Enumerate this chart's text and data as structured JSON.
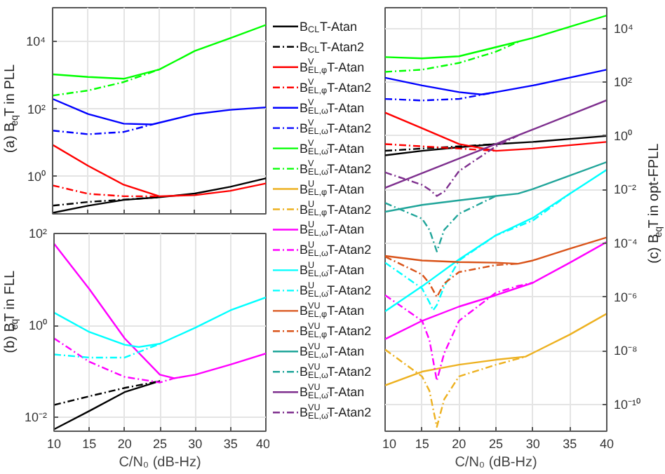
{
  "chart_data": [
    {
      "type": "line",
      "ylabel": "(a) B$_{eq}$T in PLL",
      "xlim": [
        10,
        40
      ],
      "xticks": [
        10,
        15,
        20,
        25,
        30,
        35,
        40
      ],
      "ylim": [
        0.079,
        100000
      ],
      "yticks": [
        {
          "value": 1,
          "label": "10⁰"
        },
        {
          "value": 100,
          "label": "10²"
        },
        {
          "value": 10000,
          "label": "10⁴"
        }
      ],
      "log": true,
      "grid": true,
      "tick_labels": "y",
      "legend": "right",
      "series": [
        {
          "name": "B$_{CL}$T-Atan",
          "color": "#000000",
          "line_style": "solid",
          "x": [
            10,
            15,
            20,
            25,
            30,
            35,
            40
          ],
          "values": [
            0.085,
            0.138,
            0.204,
            0.245,
            0.316,
            0.5,
            0.89
          ]
        },
        {
          "name": "B$_{CL}$T-Atan2",
          "color": "#000000",
          "line_style": "dashed",
          "x": [
            10,
            15,
            20,
            25
          ],
          "values": [
            0.138,
            0.178,
            0.209,
            0.245
          ]
        },
        {
          "name": "B$^{V}$$_{EL,φ}$T-Atan",
          "color": "#ff0000",
          "line_style": "solid",
          "x": [
            10,
            15,
            20,
            25,
            30,
            35,
            40
          ],
          "values": [
            8.7,
            2.09,
            0.575,
            0.263,
            0.282,
            0.38,
            0.63
          ]
        },
        {
          "name": "B$^{V}$$_{EL,φ}$T-Atan2",
          "color": "#ff0000",
          "line_style": "dashed",
          "x": [
            10,
            15,
            20,
            25
          ],
          "values": [
            0.55,
            0.31,
            0.263,
            0.263
          ]
        },
        {
          "name": "B$^{V}$$_{EL,ω}$T-Atan",
          "color": "#0000ff",
          "line_style": "solid",
          "x": [
            10,
            15,
            20,
            24,
            30,
            35,
            40
          ],
          "values": [
            200,
            71,
            37,
            35,
            71,
            95,
            112
          ]
        },
        {
          "name": "B$^{V}$$_{EL,ω}$T-Atan2",
          "color": "#0000ff",
          "line_style": "dashed",
          "x": [
            10,
            15,
            20,
            24
          ],
          "values": [
            23,
            18,
            21,
            35
          ]
        },
        {
          "name": "B$^{V}$$_{EL,ω̇}$T-Atan",
          "color": "#00ff00",
          "line_style": "solid",
          "x": [
            10,
            15,
            20,
            25,
            30,
            35,
            40
          ],
          "values": [
            1070,
            890,
            790,
            1480,
            5250,
            12600,
            30900
          ]
        },
        {
          "name": "B$^{V}$$_{EL,ω̇}$T-Atan2",
          "color": "#00ff00",
          "line_style": "dashed",
          "x": [
            10,
            15,
            20,
            25
          ],
          "values": [
            251,
            355,
            631,
            1480
          ]
        }
      ]
    },
    {
      "type": "line",
      "ylabel": "(b) B$_{eq}$T in FLL",
      "xlabel": "C/N₀ (dB-Hz)",
      "xlim": [
        10,
        40
      ],
      "xticks": [
        10,
        15,
        20,
        25,
        30,
        35,
        40
      ],
      "ylim": [
        0.005,
        100
      ],
      "yticks": [
        {
          "value": 0.01,
          "label": "10⁻²"
        },
        {
          "value": 1,
          "label": "10⁰"
        },
        {
          "value": 100,
          "label": "10²"
        }
      ],
      "log": true,
      "grid": true,
      "legend": "right",
      "series": [
        {
          "color": "#000000",
          "line_style": "solid",
          "x": [
            10,
            15,
            20,
            25
          ],
          "values": [
            0.0055,
            0.0138,
            0.0355,
            0.0617
          ]
        },
        {
          "color": "#000000",
          "line_style": "dashed",
          "x": [
            10,
            15,
            20,
            25
          ],
          "values": [
            0.0186,
            0.0288,
            0.0437,
            0.0617
          ]
        },
        {
          "name": "B$^{U}$$_{EL,ω}$T-Atan",
          "color": "#ff00ff",
          "line_style": "solid",
          "x": [
            10,
            15,
            20,
            25,
            27,
            30,
            35,
            40
          ],
          "values": [
            60,
            6.2,
            0.525,
            0.085,
            0.071,
            0.085,
            0.141,
            0.245
          ]
        },
        {
          "name": "B$^{U}$$_{EL,ω}$T-Atan2",
          "color": "#ff00ff",
          "line_style": "dashed",
          "x": [
            10,
            15,
            20,
            25,
            27
          ],
          "values": [
            0.525,
            0.162,
            0.076,
            0.0575,
            0.071
          ]
        },
        {
          "name": "B$^{U}$$_{EL,ω̇}$T-Atan",
          "color": "#00ffff",
          "line_style": "solid",
          "x": [
            10,
            15,
            20,
            22,
            25,
            30,
            35,
            40
          ],
          "values": [
            1.9,
            0.72,
            0.38,
            0.34,
            0.4,
            0.89,
            2.14,
            4.07
          ]
        },
        {
          "name": "B$^{U}$$_{EL,ω̇}$T-Atan2",
          "color": "#00ffff",
          "line_style": "dashed",
          "x": [
            10,
            15,
            20,
            25
          ],
          "values": [
            0.234,
            0.2,
            0.2,
            0.4
          ]
        }
      ]
    },
    {
      "type": "line",
      "ylabel": "(c) B$_{eq}$T in opt-FPLL",
      "xlabel": "C/N₀ (dB-Hz)",
      "xlim": [
        10,
        40
      ],
      "xticks": [
        10,
        15,
        20,
        25,
        30,
        35,
        40
      ],
      "ylim": [
        1e-11,
        60000
      ],
      "yticks": [
        {
          "value": 1e-10,
          "label": "10⁻¹⁰"
        },
        {
          "value": 1e-08,
          "label": "10⁻⁸"
        },
        {
          "value": 1e-06,
          "label": "10⁻⁶"
        },
        {
          "value": 0.0001,
          "label": "10⁻⁴"
        },
        {
          "value": 0.01,
          "label": "10⁻²"
        },
        {
          "value": 1,
          "label": "10⁰"
        },
        {
          "value": 100,
          "label": "10²"
        },
        {
          "value": 10000,
          "label": "10⁴"
        }
      ],
      "log": true,
      "grid": true,
      "legend": "left",
      "series": [
        {
          "color": "#000000",
          "line_style": "solid",
          "x": [
            10,
            15,
            20,
            25,
            30,
            40
          ],
          "values": [
            0.19,
            0.28,
            0.38,
            0.5,
            0.6,
            1.0
          ]
        },
        {
          "color": "#000000",
          "line_style": "dashed",
          "x": [
            10,
            15,
            20,
            25
          ],
          "values": [
            0.28,
            0.34,
            0.41,
            0.5
          ]
        },
        {
          "color": "#ff0000",
          "line_style": "solid",
          "x": [
            10,
            15,
            20,
            25,
            30,
            40
          ],
          "values": [
            7.4,
            1.95,
            0.5,
            0.28,
            0.34,
            0.6
          ]
        },
        {
          "color": "#ff0000",
          "line_style": "dashed",
          "x": [
            10,
            15,
            20,
            25
          ],
          "values": [
            0.5,
            0.41,
            0.34,
            0.28
          ]
        },
        {
          "color": "#0000ff",
          "line_style": "solid",
          "x": [
            10,
            15,
            20,
            23,
            25,
            30,
            40
          ],
          "values": [
            148,
            76,
            43,
            35,
            43,
            76,
            295
          ]
        },
        {
          "color": "#0000ff",
          "line_style": "dashed",
          "x": [
            10,
            15,
            20,
            25
          ],
          "values": [
            24,
            21,
            24,
            43
          ]
        },
        {
          "color": "#00ff00",
          "line_style": "solid",
          "x": [
            10,
            15,
            20,
            25,
            30,
            35,
            40
          ],
          "values": [
            871,
            776,
            933,
            2040,
            4470,
            11700,
            30900
          ]
        },
        {
          "color": "#00ff00",
          "line_style": "dashed",
          "x": [
            10,
            15,
            20,
            25,
            28
          ],
          "values": [
            245,
            295,
            525,
            1380,
            3160
          ]
        },
        {
          "name": "B$^{U}$$_{EL,φ}$T-Atan",
          "color": "#edb120",
          "line_style": "solid",
          "x": [
            10,
            15,
            20,
            25,
            29,
            35,
            40
          ],
          "values": [
            5.1e-10,
            1.66e-09,
            3e-09,
            4.6e-09,
            6e-09,
            4e-08,
            2.4e-07
          ]
        },
        {
          "name": "B$^{U}$$_{EL,φ}$T-Atan2",
          "color": "#edb120",
          "line_style": "dashed",
          "x": [
            10,
            15,
            16,
            17,
            18,
            20,
            25,
            29
          ],
          "values": [
            1.1e-08,
            1.1e-09,
            3.2e-10,
            1.45e-11,
            1.55e-10,
            1.1e-09,
            3e-09,
            6e-09
          ]
        },
        {
          "color": "#ff00ff",
          "line_style": "solid",
          "x": [
            10,
            15,
            20,
            25,
            30,
            35,
            40
          ],
          "values": [
            2.7e-08,
            1.3e-07,
            4.4e-07,
            1.17e-06,
            3.4e-06,
            1.9e-05,
            0.000112
          ]
        },
        {
          "color": "#ff00ff",
          "line_style": "dashed",
          "x": [
            10,
            15,
            16,
            17,
            18,
            20,
            25,
            28,
            30
          ],
          "values": [
            1.17e-06,
            1.3e-07,
            2.5e-08,
            7.6e-10,
            8.1e-09,
            1.3e-07,
            1.45e-06,
            2.6e-06,
            3.4e-06
          ]
        },
        {
          "color": "#00ffff",
          "line_style": "solid",
          "x": [
            10,
            15,
            20,
            25,
            30,
            35,
            40
          ],
          "values": [
            2.95e-07,
            2.5e-06,
            2.5e-05,
            0.0002,
            0.00089,
            0.0071,
            0.055
          ]
        },
        {
          "color": "#00ffff",
          "line_style": "dashed",
          "x": [
            10,
            15,
            16,
            16.5,
            17,
            18,
            20,
            25,
            30,
            35
          ],
          "values": [
            1.9e-05,
            2.1e-06,
            6.3e-07,
            3.2e-07,
            5e-07,
            2.5e-06,
            2.3e-05,
            0.0002,
            0.00071,
            0.0071
          ]
        },
        {
          "name": "B$^{VU}$$_{EL,φ}$T-Atan",
          "color": "#d95319",
          "line_style": "solid",
          "x": [
            10,
            15,
            20,
            25,
            28,
            30,
            35,
            40
          ],
          "values": [
            3.4e-05,
            2.3e-05,
            2e-05,
            1.9e-05,
            1.74e-05,
            2.3e-05,
            6.3e-05,
            0.000166
          ]
        },
        {
          "name": "B$^{VU}$$_{EL,φ}$T-Atan2",
          "color": "#d95319",
          "line_style": "dashed",
          "x": [
            10,
            15,
            16,
            17,
            18,
            20,
            25,
            28
          ],
          "values": [
            3.2e-05,
            6.9e-06,
            3.2e-06,
            1e-06,
            3.2e-06,
            8.5e-06,
            1.55e-05,
            1.74e-05
          ]
        },
        {
          "name": "B$^{VU}$$_{EL,ω}$T-Atan",
          "color": "#20a59a",
          "line_style": "solid",
          "x": [
            10,
            15,
            20,
            25,
            28,
            30,
            40
          ],
          "values": [
            0.0015,
            0.0027,
            0.004,
            0.0058,
            0.0071,
            0.0105,
            0.107
          ]
        },
        {
          "name": "B$^{VU}$$_{EL,ω}$T-Atan2",
          "color": "#20a59a",
          "line_style": "dashed",
          "x": [
            10,
            15,
            16,
            17,
            18,
            20,
            25
          ],
          "values": [
            0.0032,
            0.00083,
            0.00032,
            5e-05,
            0.00032,
            0.00126,
            0.0058
          ]
        },
        {
          "name": "B$^{VU}$$_{EL,ω̇}$T-Atan",
          "color": "#7e2f8e",
          "line_style": "solid",
          "x": [
            10,
            20,
            30,
            40
          ],
          "values": [
            0.0117,
            0.145,
            1.74,
            21.4
          ]
        },
        {
          "name": "B$^{VU}$$_{EL,ω̇}$T-Atan2",
          "color": "#7e2f8e",
          "line_style": "dashed",
          "x": [
            10,
            15,
            16,
            17,
            18,
            20,
            25,
            28
          ],
          "values": [
            0.044,
            0.0151,
            0.01,
            0.0058,
            0.0085,
            0.049,
            0.41,
            1.05
          ]
        }
      ]
    }
  ]
}
